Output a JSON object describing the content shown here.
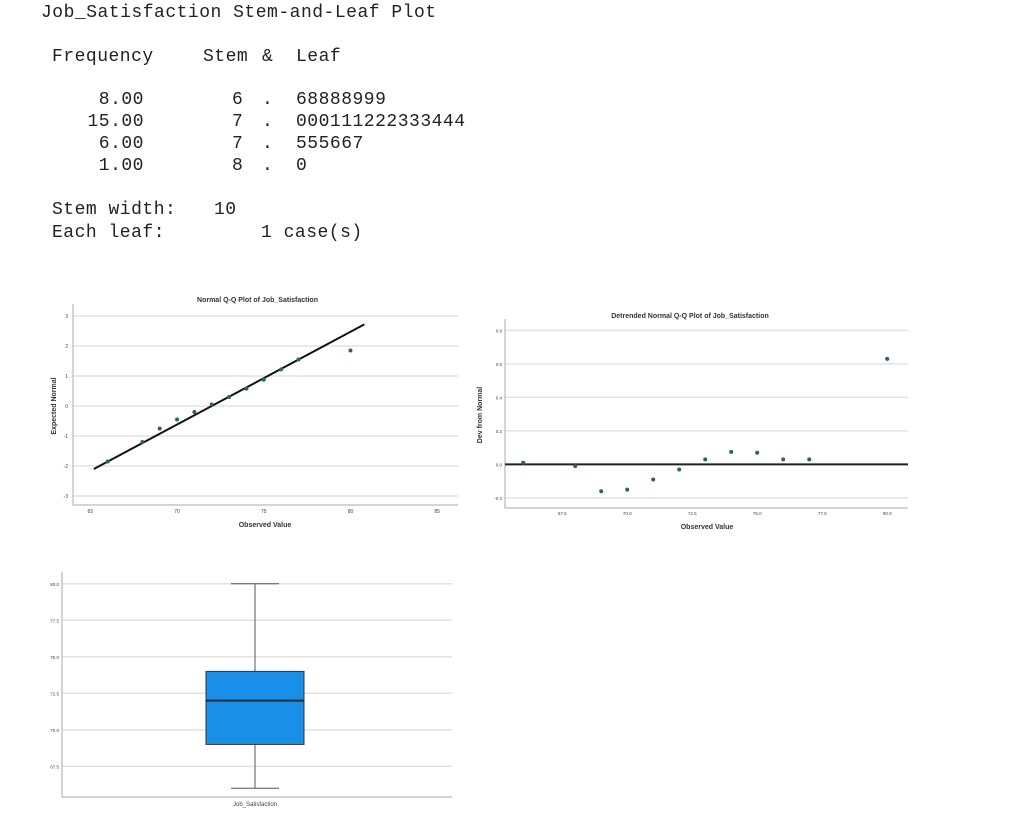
{
  "stem_leaf": {
    "title": "Job_Satisfaction Stem-and-Leaf Plot",
    "headers": {
      "frequency": "Frequency",
      "stem": "Stem",
      "amp": "&",
      "leaf": "Leaf"
    },
    "rows": [
      {
        "frequency": "8.00",
        "stem": "6",
        "dot": ".",
        "leaf": "68888999"
      },
      {
        "frequency": "15.00",
        "stem": "7",
        "dot": ".",
        "leaf": "000111222333444"
      },
      {
        "frequency": "6.00",
        "stem": "7",
        "dot": ".",
        "leaf": "555667"
      },
      {
        "frequency": "1.00",
        "stem": "8",
        "dot": ".",
        "leaf": "0"
      }
    ],
    "stem_width_label": "Stem width:",
    "stem_width_value": "10",
    "each_leaf_label": "Each leaf:",
    "each_leaf_value": "1 case(s)"
  },
  "chart_data": [
    {
      "type": "scatter",
      "title": "Normal Q-Q Plot of Job_Satisfaction",
      "xlabel": "Observed Value",
      "ylabel": "Expected Normal",
      "xlim": [
        64,
        86.2
      ],
      "ylim": [
        -3.3,
        3.3
      ],
      "xticks": [
        65,
        70,
        75,
        80,
        85
      ],
      "yticks": [
        -3,
        -2,
        -1,
        0,
        1,
        2,
        3
      ],
      "grid": true,
      "point_color": "#2e5f6e",
      "x": [
        66,
        68,
        69,
        70,
        71,
        72,
        73,
        74,
        75,
        76,
        77,
        80
      ],
      "y": [
        -1.85,
        -1.2,
        -0.75,
        -0.45,
        -0.2,
        0.05,
        0.3,
        0.58,
        0.88,
        1.22,
        1.55,
        1.85
      ],
      "reference_line": [
        [
          65.2,
          -2.1
        ],
        [
          80.8,
          2.72
        ]
      ]
    },
    {
      "type": "scatter",
      "title": "Detrended Normal Q-Q Plot of Job_Satisfaction",
      "xlabel": "Observed Value",
      "ylabel": "Dev from Normal",
      "xlim": [
        65.3,
        80.8
      ],
      "ylim": [
        -0.26,
        0.85
      ],
      "xticks": [
        "67.5",
        "70.0",
        "72.5",
        "75.0",
        "77.5",
        "80.0"
      ],
      "yticks": [
        "-0.2",
        "0.0",
        "0.2",
        "0.4",
        "0.6",
        "0.8"
      ],
      "grid": true,
      "point_color": "#2e5f6e",
      "x": [
        66,
        68,
        69,
        70,
        71,
        72,
        73,
        74,
        75,
        76,
        77,
        80
      ],
      "y": [
        0.01,
        -0.01,
        -0.16,
        -0.15,
        -0.09,
        -0.03,
        0.03,
        0.075,
        0.07,
        0.03,
        0.03,
        0.63
      ],
      "reference_line_y": 0
    },
    {
      "type": "box",
      "category": "Job_Satisfaction",
      "ylim": [
        65.4,
        80.6
      ],
      "yticks": [
        "67.5",
        "70.0",
        "72.5",
        "75.0",
        "77.5",
        "80.0"
      ],
      "grid": true,
      "box_color": "#1a8fe8",
      "min": 66,
      "q1": 69,
      "median": 72,
      "q3": 74,
      "max": 80
    }
  ]
}
